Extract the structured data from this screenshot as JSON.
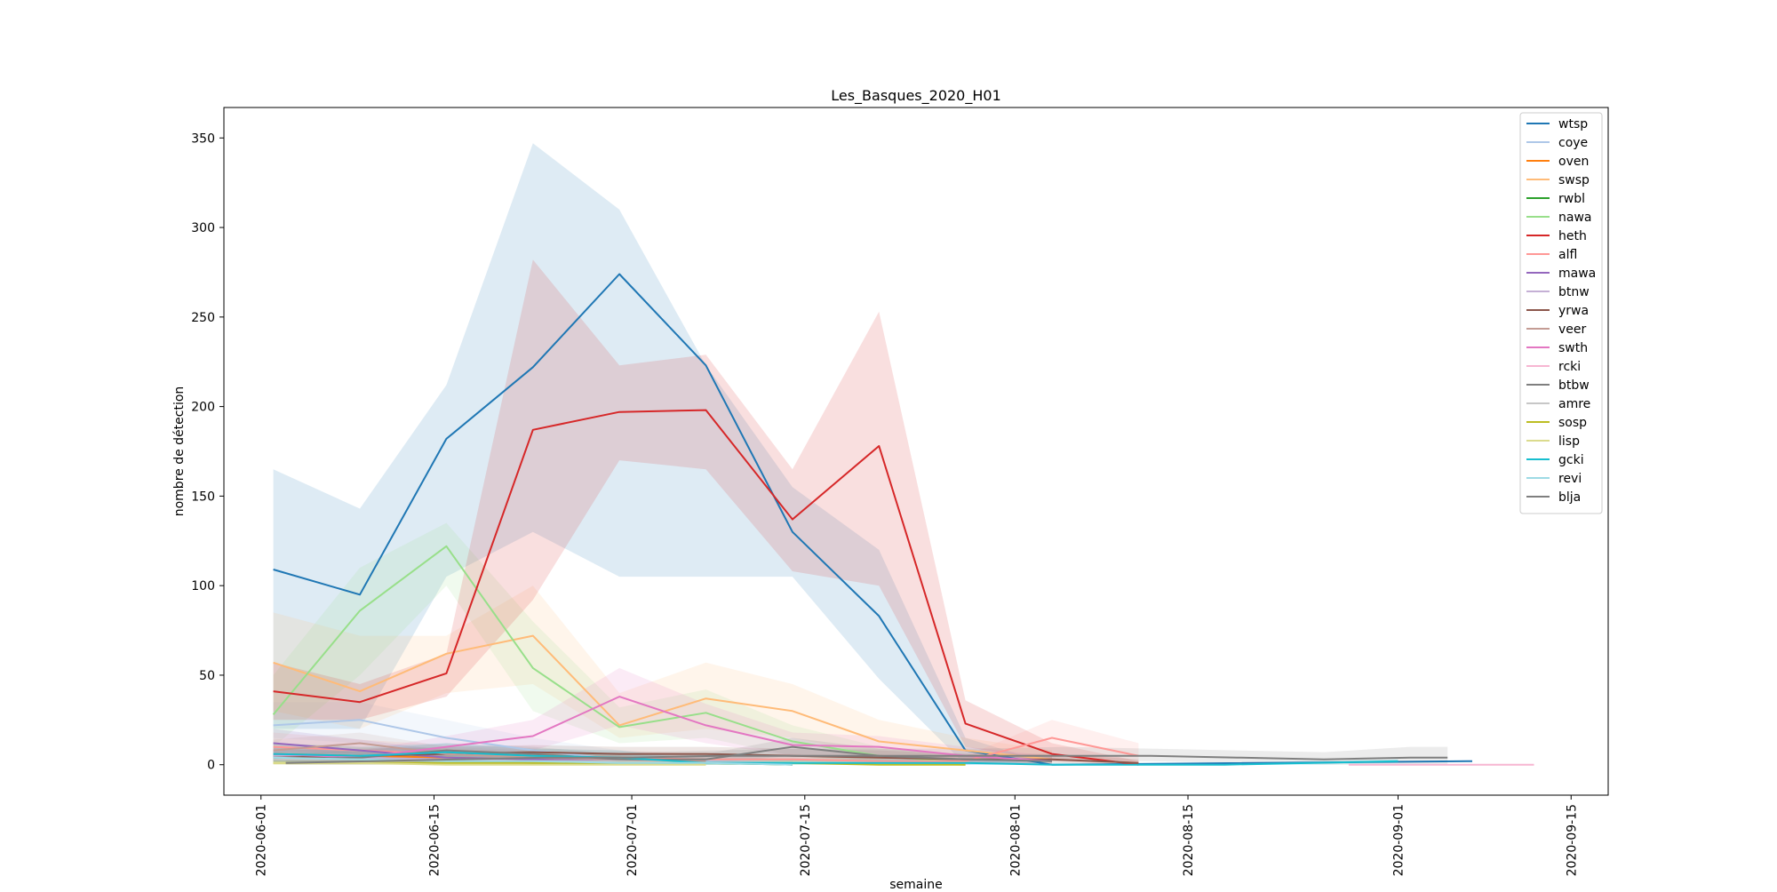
{
  "chart_data": {
    "type": "line",
    "title": "Les_Basques_2020_H01",
    "xlabel": "semaine",
    "ylabel": "nombre de détection",
    "x_range": [
      "2020-05-29",
      "2020-09-18"
    ],
    "ylim": [
      -17,
      367
    ],
    "yticks": [
      0,
      50,
      100,
      150,
      200,
      250,
      300,
      350
    ],
    "xticks": [
      "2020-06-01",
      "2020-06-15",
      "2020-07-01",
      "2020-07-15",
      "2020-08-01",
      "2020-08-15",
      "2020-09-01",
      "2020-09-15"
    ],
    "legend_position": "top-right",
    "series": [
      {
        "name": "wtsp",
        "color": "#1f77b4",
        "x": [
          "2020-06-02",
          "2020-06-09",
          "2020-06-16",
          "2020-06-23",
          "2020-06-30",
          "2020-07-07",
          "2020-07-14",
          "2020-07-21",
          "2020-07-28",
          "2020-08-04",
          "2020-09-07"
        ],
        "values": [
          109,
          95,
          182,
          222,
          274,
          223,
          130,
          83,
          8,
          0,
          2
        ],
        "lower": [
          20,
          20,
          105,
          130,
          105,
          105,
          105,
          48,
          0,
          0,
          2
        ],
        "upper": [
          165,
          143,
          212,
          347,
          310,
          223,
          155,
          120,
          15,
          0,
          2
        ]
      },
      {
        "name": "coye",
        "color": "#aec7e8",
        "x": [
          "2020-06-02",
          "2020-06-09",
          "2020-06-16",
          "2020-06-23",
          "2020-06-30",
          "2020-07-07",
          "2020-07-14"
        ],
        "values": [
          22,
          25,
          15,
          8,
          3,
          2,
          1
        ],
        "lower": [
          15,
          12,
          5,
          2,
          0,
          0,
          0
        ],
        "upper": [
          35,
          35,
          25,
          15,
          8,
          5,
          3
        ]
      },
      {
        "name": "oven",
        "color": "#ff7f0e",
        "x": [
          "2020-06-02",
          "2020-06-09",
          "2020-06-16",
          "2020-06-23",
          "2020-06-30",
          "2020-07-07"
        ],
        "values": [
          6,
          5,
          4,
          3,
          2,
          1
        ],
        "lower": [
          2,
          2,
          1,
          1,
          0,
          0
        ],
        "upper": [
          12,
          10,
          9,
          7,
          5,
          3
        ]
      },
      {
        "name": "swsp",
        "color": "#ffbb78",
        "x": [
          "2020-06-02",
          "2020-06-09",
          "2020-06-16",
          "2020-06-23",
          "2020-06-30",
          "2020-07-07",
          "2020-07-14",
          "2020-07-21",
          "2020-07-28",
          "2020-08-04"
        ],
        "values": [
          57,
          41,
          62,
          72,
          22,
          37,
          30,
          13,
          8,
          3
        ],
        "lower": [
          30,
          20,
          40,
          45,
          15,
          20,
          15,
          5,
          3,
          0
        ],
        "upper": [
          85,
          72,
          72,
          100,
          40,
          57,
          45,
          25,
          15,
          8
        ]
      },
      {
        "name": "rwbl",
        "color": "#2ca02c",
        "x": [
          "2020-06-02",
          "2020-06-09",
          "2020-06-16",
          "2020-06-23",
          "2020-06-30",
          "2020-07-07",
          "2020-07-14"
        ],
        "values": [
          5,
          3,
          2,
          1,
          1,
          1,
          0
        ],
        "lower": [
          1,
          1,
          0,
          0,
          0,
          0,
          0
        ],
        "upper": [
          10,
          7,
          5,
          3,
          3,
          3,
          1
        ]
      },
      {
        "name": "nawa",
        "color": "#98df8a",
        "x": [
          "2020-06-02",
          "2020-06-09",
          "2020-06-16",
          "2020-06-23",
          "2020-06-30",
          "2020-07-07",
          "2020-07-14",
          "2020-07-21",
          "2020-07-28"
        ],
        "values": [
          28,
          86,
          122,
          54,
          21,
          29,
          13,
          5,
          1
        ],
        "lower": [
          10,
          50,
          100,
          30,
          12,
          15,
          5,
          0,
          0
        ],
        "upper": [
          50,
          110,
          135,
          80,
          32,
          42,
          22,
          10,
          3
        ]
      },
      {
        "name": "heth",
        "color": "#d62728",
        "x": [
          "2020-06-02",
          "2020-06-09",
          "2020-06-16",
          "2020-06-23",
          "2020-06-30",
          "2020-07-07",
          "2020-07-14",
          "2020-07-21",
          "2020-07-28",
          "2020-08-04",
          "2020-08-11"
        ],
        "values": [
          41,
          35,
          51,
          187,
          197,
          198,
          137,
          178,
          23,
          6,
          0
        ],
        "lower": [
          25,
          25,
          38,
          92,
          170,
          165,
          108,
          100,
          10,
          2,
          0
        ],
        "upper": [
          57,
          45,
          62,
          282,
          223,
          229,
          165,
          253,
          36,
          12,
          2
        ]
      },
      {
        "name": "alfl",
        "color": "#ff9896",
        "x": [
          "2020-06-02",
          "2020-06-09",
          "2020-06-16",
          "2020-06-23",
          "2020-06-30",
          "2020-07-07",
          "2020-07-14",
          "2020-07-21",
          "2020-07-28",
          "2020-08-04",
          "2020-08-11"
        ],
        "values": [
          10,
          8,
          6,
          5,
          4,
          3,
          3,
          2,
          2,
          15,
          5
        ],
        "lower": [
          5,
          4,
          3,
          2,
          1,
          1,
          1,
          0,
          0,
          5,
          1
        ],
        "upper": [
          18,
          14,
          11,
          9,
          8,
          6,
          6,
          5,
          5,
          25,
          12
        ]
      },
      {
        "name": "mawa",
        "color": "#9467bd",
        "x": [
          "2020-06-02",
          "2020-06-09",
          "2020-06-16",
          "2020-06-23",
          "2020-06-30",
          "2020-07-07"
        ],
        "values": [
          12,
          8,
          4,
          3,
          2,
          1
        ],
        "lower": [
          5,
          3,
          1,
          1,
          0,
          0
        ],
        "upper": [
          20,
          14,
          8,
          6,
          4,
          3
        ]
      },
      {
        "name": "btnw",
        "color": "#c5b0d5",
        "x": [
          "2020-06-02",
          "2020-06-09",
          "2020-06-16",
          "2020-06-23",
          "2020-06-30",
          "2020-07-07"
        ],
        "values": [
          5,
          4,
          3,
          2,
          2,
          1
        ],
        "lower": [
          2,
          1,
          1,
          0,
          0,
          0
        ],
        "upper": [
          9,
          8,
          6,
          5,
          4,
          3
        ]
      },
      {
        "name": "yrwa",
        "color": "#8c564b",
        "x": [
          "2020-06-02",
          "2020-06-09",
          "2020-06-16",
          "2020-06-23",
          "2020-06-30",
          "2020-07-07",
          "2020-07-14",
          "2020-07-21",
          "2020-07-28",
          "2020-08-04",
          "2020-08-11"
        ],
        "values": [
          4,
          5,
          6,
          7,
          6,
          6,
          5,
          4,
          3,
          3,
          1
        ],
        "lower": [
          1,
          2,
          3,
          3,
          3,
          3,
          2,
          1,
          1,
          1,
          0
        ],
        "upper": [
          8,
          9,
          10,
          11,
          10,
          10,
          9,
          8,
          6,
          6,
          3
        ]
      },
      {
        "name": "veer",
        "color": "#c49c94",
        "x": [
          "2020-06-02",
          "2020-06-09",
          "2020-06-16",
          "2020-06-23",
          "2020-06-30",
          "2020-07-07"
        ],
        "values": [
          8,
          12,
          6,
          4,
          3,
          2
        ],
        "lower": [
          3,
          5,
          2,
          1,
          1,
          0
        ],
        "upper": [
          14,
          18,
          10,
          8,
          6,
          4
        ]
      },
      {
        "name": "swth",
        "color": "#e377c2",
        "x": [
          "2020-06-02",
          "2020-06-09",
          "2020-06-16",
          "2020-06-23",
          "2020-06-30",
          "2020-07-07",
          "2020-07-14",
          "2020-07-21",
          "2020-07-28",
          "2020-08-04"
        ],
        "values": [
          6,
          4,
          10,
          16,
          38,
          22,
          11,
          10,
          5,
          2
        ],
        "lower": [
          2,
          1,
          5,
          8,
          22,
          12,
          5,
          4,
          1,
          0
        ],
        "upper": [
          10,
          8,
          16,
          25,
          54,
          34,
          18,
          16,
          10,
          5
        ]
      },
      {
        "name": "rcki",
        "color": "#f7b6d2",
        "x": [
          "2020-08-28",
          "2020-09-07",
          "2020-09-12"
        ],
        "values": [
          0,
          0,
          0
        ],
        "lower": [
          0,
          0,
          0
        ],
        "upper": [
          0,
          0,
          0
        ]
      },
      {
        "name": "btbw",
        "color": "#7f7f7f",
        "x": [
          "2020-06-02",
          "2020-06-09",
          "2020-06-16",
          "2020-06-23",
          "2020-06-30",
          "2020-07-07",
          "2020-07-14",
          "2020-07-21",
          "2020-07-28",
          "2020-08-04"
        ],
        "values": [
          3,
          4,
          8,
          6,
          3,
          3,
          10,
          5,
          3,
          2
        ],
        "lower": [
          1,
          1,
          4,
          3,
          1,
          1,
          5,
          2,
          1,
          0
        ],
        "upper": [
          6,
          8,
          12,
          10,
          6,
          6,
          15,
          9,
          6,
          5
        ]
      },
      {
        "name": "amre",
        "color": "#c7c7c7",
        "x": [
          "2020-06-02",
          "2020-06-09",
          "2020-06-16",
          "2020-06-23",
          "2020-06-30",
          "2020-07-07",
          "2020-07-14",
          "2020-07-21",
          "2020-07-28"
        ],
        "values": [
          3,
          3,
          2,
          2,
          2,
          1,
          1,
          1,
          0
        ],
        "lower": [
          1,
          1,
          0,
          0,
          0,
          0,
          0,
          0,
          0
        ],
        "upper": [
          6,
          6,
          5,
          5,
          4,
          3,
          3,
          3,
          1
        ]
      },
      {
        "name": "sosp",
        "color": "#bcbd22",
        "x": [
          "2020-06-02",
          "2020-06-09",
          "2020-06-16",
          "2020-06-23",
          "2020-06-30",
          "2020-07-07",
          "2020-07-14",
          "2020-07-21",
          "2020-07-28"
        ],
        "values": [
          1,
          1,
          1,
          1,
          1,
          1,
          1,
          0,
          0
        ],
        "lower": [
          0,
          0,
          0,
          0,
          0,
          0,
          0,
          0,
          0
        ],
        "upper": [
          3,
          3,
          3,
          3,
          3,
          3,
          3,
          1,
          1
        ]
      },
      {
        "name": "lisp",
        "color": "#dbdb8d",
        "x": [
          "2020-06-02",
          "2020-06-09",
          "2020-06-16",
          "2020-06-23",
          "2020-06-30",
          "2020-07-07"
        ],
        "values": [
          1,
          1,
          0,
          0,
          0,
          0
        ],
        "lower": [
          0,
          0,
          0,
          0,
          0,
          0
        ],
        "upper": [
          2,
          2,
          1,
          1,
          1,
          1
        ]
      },
      {
        "name": "gcki",
        "color": "#17becf",
        "x": [
          "2020-06-02",
          "2020-06-09",
          "2020-06-16",
          "2020-06-23",
          "2020-06-30",
          "2020-07-07",
          "2020-07-14",
          "2020-07-21",
          "2020-07-28",
          "2020-08-04",
          "2020-08-11",
          "2020-08-18",
          "2020-08-25",
          "2020-09-01"
        ],
        "values": [
          6,
          5,
          7,
          5,
          4,
          1,
          1,
          1,
          1,
          0,
          0,
          0,
          1,
          2
        ],
        "lower": [
          2,
          2,
          3,
          2,
          1,
          0,
          0,
          0,
          0,
          0,
          0,
          0,
          0,
          1
        ],
        "upper": [
          12,
          10,
          12,
          9,
          8,
          3,
          3,
          3,
          3,
          1,
          1,
          1,
          2,
          3
        ]
      },
      {
        "name": "revi",
        "color": "#9edae5",
        "x": [
          "2020-06-02",
          "2020-06-09",
          "2020-06-16",
          "2020-06-23",
          "2020-06-30",
          "2020-07-07",
          "2020-07-14"
        ],
        "values": [
          4,
          3,
          2,
          2,
          1,
          1,
          0
        ],
        "lower": [
          1,
          1,
          0,
          0,
          0,
          0,
          0
        ],
        "upper": [
          8,
          6,
          5,
          4,
          3,
          3,
          1
        ]
      },
      {
        "name": "blja",
        "color": "#7f7f7f",
        "x": [
          "2020-06-03",
          "2020-06-10",
          "2020-06-17",
          "2020-06-24",
          "2020-07-01",
          "2020-07-08",
          "2020-07-15",
          "2020-07-22",
          "2020-07-29",
          "2020-08-05",
          "2020-08-12",
          "2020-08-19",
          "2020-08-26",
          "2020-09-02",
          "2020-09-05"
        ],
        "values": [
          1,
          2,
          3,
          4,
          4,
          5,
          5,
          5,
          5,
          5,
          5,
          4,
          3,
          4,
          4
        ],
        "lower": [
          0,
          0,
          1,
          1,
          1,
          2,
          2,
          2,
          2,
          2,
          2,
          1,
          0,
          0,
          0
        ],
        "upper": [
          3,
          5,
          6,
          7,
          7,
          8,
          9,
          9,
          9,
          10,
          9,
          8,
          7,
          10,
          10
        ]
      }
    ]
  }
}
